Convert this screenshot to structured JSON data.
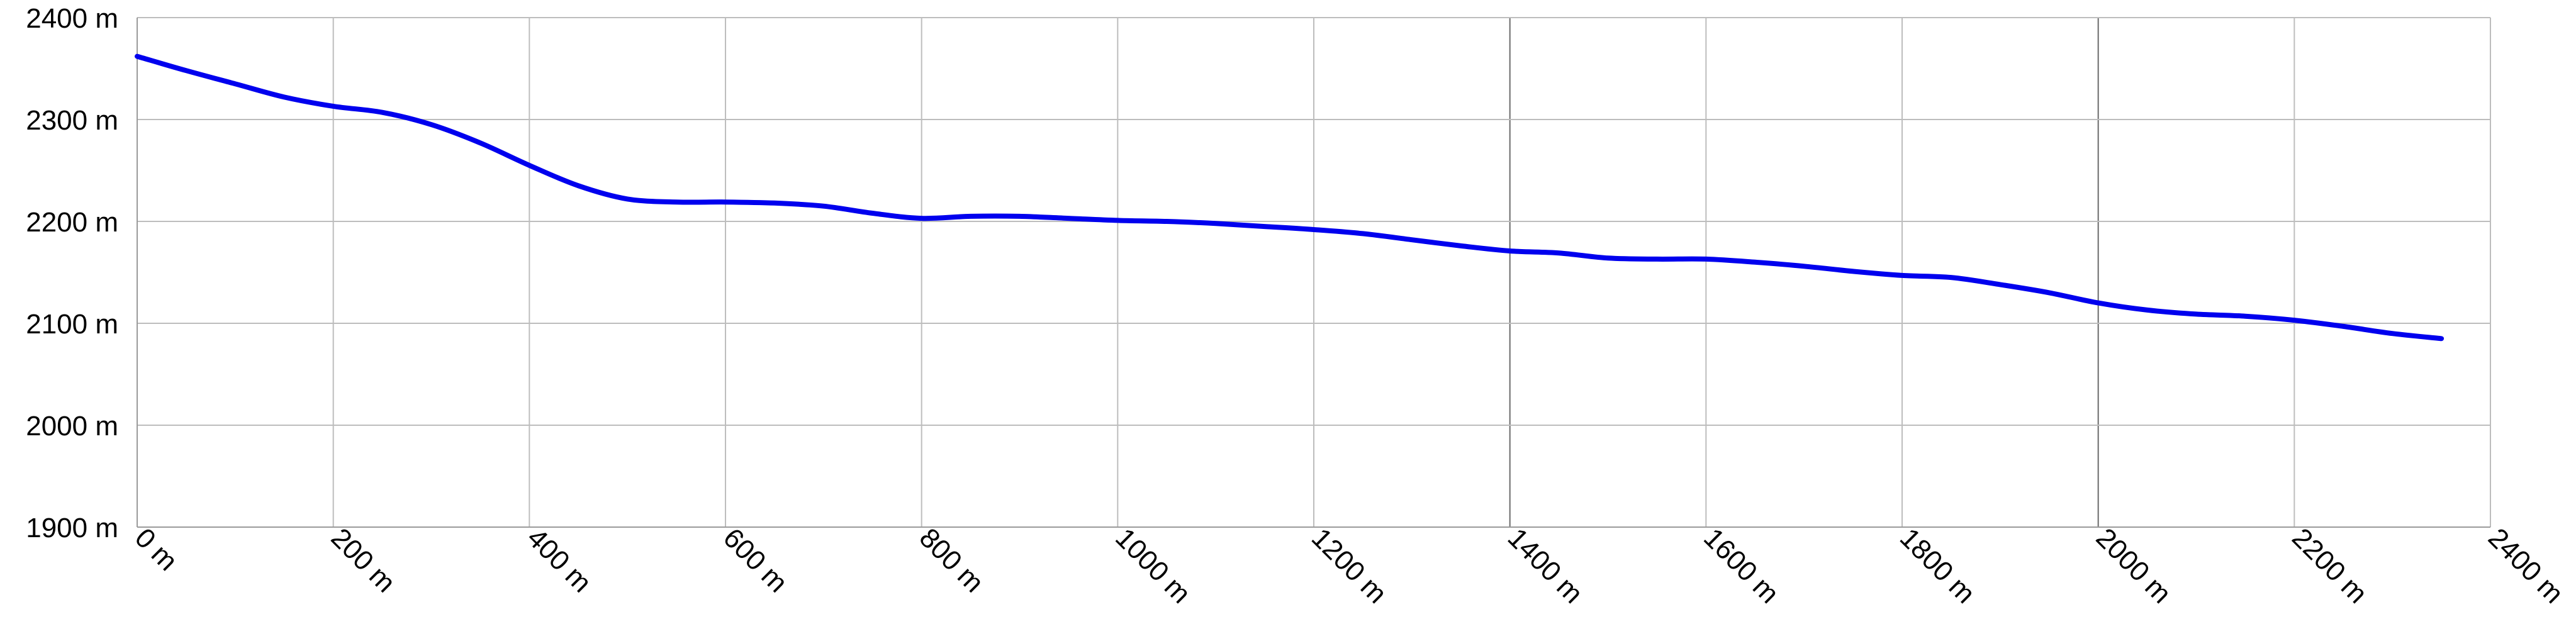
{
  "chart_data": {
    "type": "line",
    "title": "",
    "xlabel": "",
    "ylabel": "",
    "x_unit": "m",
    "y_unit": "m",
    "xlim": [
      0,
      2400
    ],
    "ylim": [
      1900,
      2400
    ],
    "x_ticks": [
      0,
      200,
      400,
      600,
      800,
      1000,
      1200,
      1400,
      1600,
      1800,
      2000,
      2200,
      2400
    ],
    "y_ticks": [
      1900,
      2000,
      2100,
      2200,
      2300,
      2400
    ],
    "x_tick_labels": [
      "0 m",
      "200 m",
      "400 m",
      "600 m",
      "800 m",
      "1000 m",
      "1200 m",
      "1400 m",
      "1600 m",
      "1800 m",
      "2000 m",
      "2200 m",
      "2400 m"
    ],
    "y_tick_labels": [
      "1900 m",
      "2000 m",
      "2100 m",
      "2200 m",
      "2300 m",
      "2400 m"
    ],
    "grid": true,
    "legend": "none",
    "colors": {
      "series": "#0000ee",
      "grid": "#bdbdbd",
      "grid_emphasis": "#6a6a6a"
    },
    "series": [
      {
        "x": [
          0,
          50,
          100,
          150,
          200,
          250,
          300,
          350,
          400,
          450,
          500,
          550,
          600,
          650,
          700,
          750,
          800,
          850,
          900,
          950,
          1000,
          1050,
          1100,
          1150,
          1200,
          1250,
          1300,
          1350,
          1400,
          1450,
          1500,
          1550,
          1600,
          1650,
          1700,
          1750,
          1800,
          1850,
          1900,
          1950,
          2000,
          2050,
          2100,
          2150,
          2200,
          2250,
          2300,
          2350
        ],
        "y": [
          2362,
          2348,
          2335,
          2322,
          2313,
          2307,
          2295,
          2277,
          2255,
          2235,
          2222,
          2219,
          2219,
          2218,
          2215,
          2208,
          2203,
          2205,
          2205,
          2203,
          2201,
          2200,
          2198,
          2195,
          2192,
          2188,
          2182,
          2176,
          2171,
          2169,
          2164,
          2163,
          2163,
          2160,
          2156,
          2151,
          2147,
          2145,
          2138,
          2130,
          2120,
          2113,
          2109,
          2107,
          2103,
          2097,
          2090,
          2085
        ]
      }
    ]
  }
}
